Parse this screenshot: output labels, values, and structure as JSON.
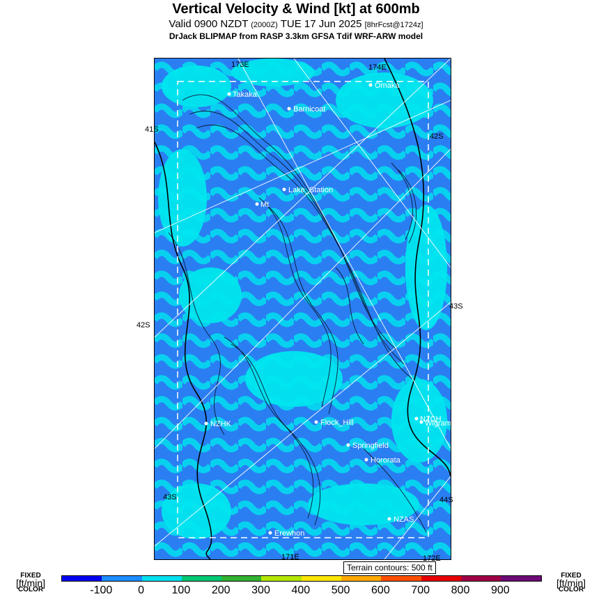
{
  "title": "Vertical Velocity & Wind [kt] at 600mb",
  "subtitle_main": "Valid 0900 NZDT",
  "subtitle_utc": "(2000Z)",
  "subtitle_date": "TUE 17 Jun 2025",
  "subtitle_fcst": "[8hrFcst@1724z]",
  "model_line": "DrJack BLIPMAP from RASP 3.3km GFSA Tdif WRF-ARW model",
  "terrain_note": "Terrain contours: 500 ft",
  "lat_lon_labels": {
    "top_left": "173E",
    "top_right": "174E",
    "left_41": "41S",
    "right_42": "42S",
    "right_43": "43S",
    "left_42": "42S",
    "left_43": "43S",
    "right_44": "44S",
    "bottom_left": "171E",
    "bottom_right": "172E"
  },
  "places": [
    {
      "name": "Takaka"
    },
    {
      "name": "Omaka"
    },
    {
      "name": "Barnicoat"
    },
    {
      "name": "Lake_Station"
    },
    {
      "name": "Mt"
    },
    {
      "name": "NZHK"
    },
    {
      "name": "Flock_Hill"
    },
    {
      "name": "NZCH"
    },
    {
      "name": "Wigram"
    },
    {
      "name": "Springfield"
    },
    {
      "name": "Hororata"
    },
    {
      "name": "NZAS"
    },
    {
      "name": "Erewhon"
    }
  ],
  "colorbar": {
    "side_label_top": "FIXED",
    "side_label_mid": "[ft/min]",
    "side_label_bot": "COLOR",
    "ticks": [
      "-100",
      "0",
      "100",
      "200",
      "300",
      "400",
      "500",
      "600",
      "700",
      "800",
      "900"
    ],
    "colors": [
      "#0000f0",
      "#1e8cff",
      "#00e0f0",
      "#00c873",
      "#32b432",
      "#b4e600",
      "#ffe600",
      "#ffaa00",
      "#ff5000",
      "#e60000",
      "#a00046",
      "#6e0a78"
    ]
  },
  "map_colors": {
    "downdraft": "#2a7ef2",
    "weak": "#00e6ee",
    "background": "#1e8cff"
  }
}
